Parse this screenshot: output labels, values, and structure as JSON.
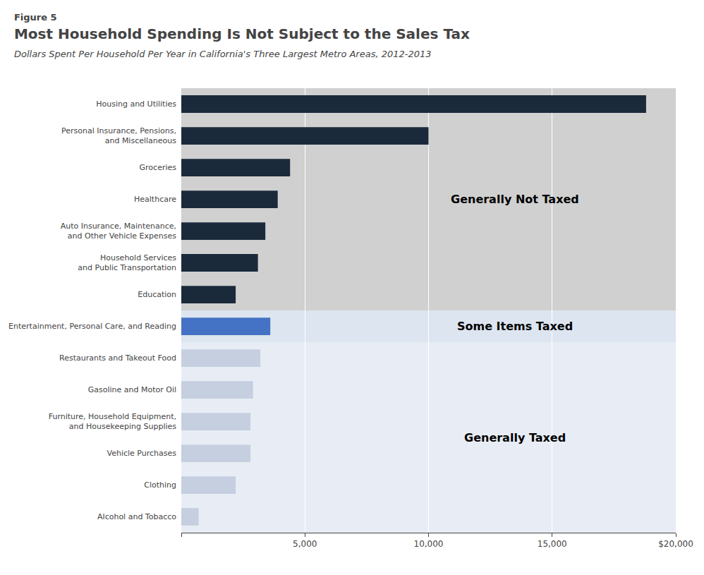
{
  "chart_data": {
    "type": "bar",
    "orientation": "horizontal",
    "figure_label": "Figure 5",
    "title": "Most Household Spending Is Not Subject to the Sales Tax",
    "subtitle": "Dollars Spent Per Household Per Year in California's Three Largest Metro Areas, 2012-2013",
    "categories": [
      "Housing and Utilities",
      "Personal Insurance, Pensions,\nand Miscellaneous",
      "Groceries",
      "Healthcare",
      "Auto Insurance, Maintenance,\nand Other Vehicle Expenses",
      "Household Services\nand Public Transportation",
      "Education",
      "Entertainment, Personal Care, and Reading",
      "Restaurants and Takeout Food",
      "Gasoline and Motor Oil",
      "Furniture, Household Equipment,\nand Housekeeping Supplies",
      "Vehicle Purchases",
      "Clothing",
      "Alcohol and Tobacco"
    ],
    "values": [
      18800,
      10000,
      4400,
      3900,
      3400,
      3100,
      2200,
      3600,
      3200,
      2900,
      2800,
      2800,
      2200,
      700
    ],
    "colors": [
      "#1b2a3b",
      "#1b2a3b",
      "#1b2a3b",
      "#1b2a3b",
      "#1b2a3b",
      "#1b2a3b",
      "#1b2a3b",
      "#4472c4",
      "#c5cfe0",
      "#c5cfe0",
      "#c5cfe0",
      "#c5cfe0",
      "#c5cfe0",
      "#c5cfe0"
    ],
    "xlim": [
      0,
      20000
    ],
    "xticks": [
      {
        "value": 0,
        "label": null
      },
      {
        "value": 5000,
        "label": "5,000"
      },
      {
        "value": 10000,
        "label": "10,000"
      },
      {
        "value": 15000,
        "label": "15,000"
      },
      {
        "value": 20000,
        "label": "$20,000"
      }
    ],
    "grid": true,
    "annotations": [
      {
        "text": "Generally Not Taxed",
        "x": 13500,
        "start": 0,
        "end": 6,
        "color": "#d0d0d0"
      },
      {
        "text": "Some Items Taxed",
        "x": 13500,
        "start": 7,
        "end": 7,
        "color": "#dde5f0"
      },
      {
        "text": "Generally Taxed",
        "x": 13500,
        "start": 8,
        "end": 13,
        "color": "#e8edf5"
      }
    ]
  }
}
